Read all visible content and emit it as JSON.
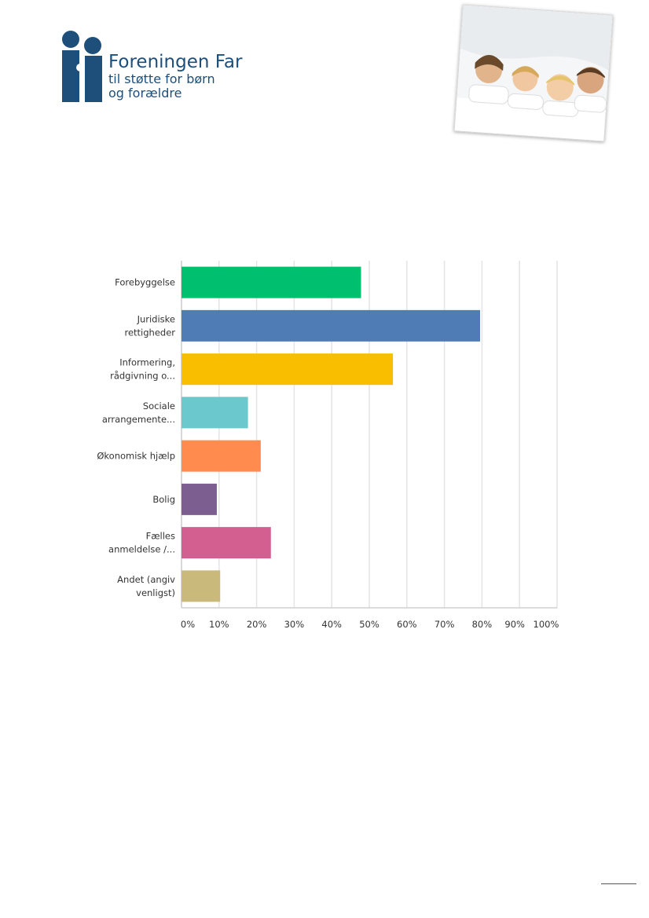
{
  "header": {
    "org_name": "Foreningen Far",
    "tagline_1": "til støtte for børn",
    "tagline_2": "og forældre"
  },
  "colors": {
    "brand": "#1e4f7a"
  },
  "photo": {
    "icon": "family-under-blanket-photo"
  },
  "chart_data": {
    "type": "bar",
    "orientation": "horizontal",
    "categories": [
      [
        "Forebyggelse"
      ],
      [
        "Juridiske",
        "rettigheder"
      ],
      [
        "Informering,",
        "rådgivning o..."
      ],
      [
        "Sociale",
        "arrangemente..."
      ],
      [
        "Økonomisk hjælp"
      ],
      [
        "Bolig"
      ],
      [
        "Fælles",
        "anmeldelse /..."
      ],
      [
        "Andet (angiv",
        "venligst)"
      ]
    ],
    "values": [
      47.8,
      79.5,
      56.3,
      17.7,
      21.1,
      9.4,
      23.8,
      10.3
    ],
    "colors": [
      "#00bf6f",
      "#507cb6",
      "#f9be00",
      "#6bc8cd",
      "#ff8b4f",
      "#7d5e90",
      "#d25f90",
      "#c9b97a"
    ],
    "xlim": [
      0,
      100
    ],
    "xticks": [
      "0%",
      "10%",
      "20%",
      "30%",
      "40%",
      "50%",
      "60%",
      "70%",
      "80%",
      "90%",
      "100%"
    ],
    "grid": true
  }
}
